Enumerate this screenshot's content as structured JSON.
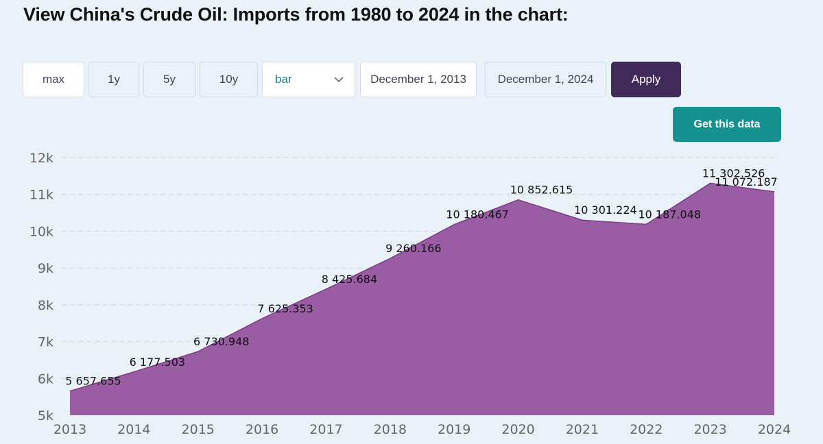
{
  "page": {
    "title": "View China's Crude Oil: Imports from 1980 to 2024 in the chart:"
  },
  "controls": {
    "range_buttons": [
      "max",
      "1y",
      "5y",
      "10y"
    ],
    "chart_type_selected": "bar",
    "start_date": "December 1, 2013",
    "end_date": "December 1, 2024",
    "apply_label": "Apply",
    "get_data_label": "Get this data"
  },
  "colors": {
    "area_fill": "#9a5da4",
    "area_stroke": "#7a3d86",
    "apply_bg": "#402a5a",
    "get_data_bg": "#17918f",
    "select_text": "#17807e"
  },
  "chart_data": {
    "type": "area",
    "title": "",
    "xlabel": "",
    "ylabel": "",
    "x": [
      2013,
      2014,
      2015,
      2016,
      2017,
      2018,
      2019,
      2020,
      2021,
      2022,
      2023,
      2024
    ],
    "values": [
      5657.655,
      6177.503,
      6730.948,
      7625.353,
      8425.684,
      9260.166,
      10180.467,
      10852.615,
      10301.224,
      10187.048,
      11302.526,
      11072.187
    ],
    "data_labels": [
      "5 657.655",
      "6 177.503",
      "6 730.948",
      "7 625.353",
      "8 425.684",
      "9 260.166",
      "10 180.467",
      "10 852.615",
      "10 301.224",
      "10 187.048",
      "11 302.526",
      "11 072.187"
    ],
    "x_tick_labels": [
      "2013",
      "2014",
      "2015",
      "2016",
      "2017",
      "2018",
      "2019",
      "2020",
      "2021",
      "2022",
      "2023",
      "2024"
    ],
    "y_ticks": [
      5000,
      6000,
      7000,
      8000,
      9000,
      10000,
      11000,
      12000
    ],
    "y_tick_labels": [
      "5k",
      "6k",
      "7k",
      "8k",
      "9k",
      "10k",
      "11k",
      "12k"
    ],
    "ylim": [
      5000,
      12000
    ],
    "grid": true,
    "legend": "none"
  }
}
